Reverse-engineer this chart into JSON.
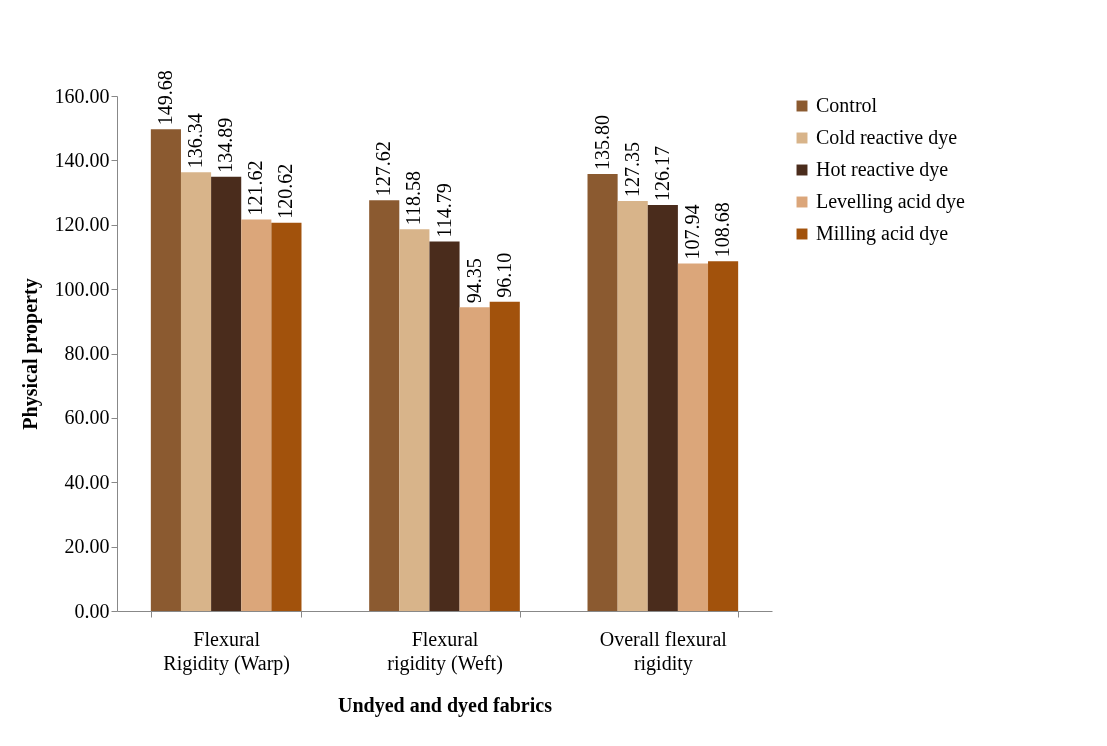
{
  "chart_data": {
    "type": "bar",
    "xlabel": "Undyed and dyed fabrics",
    "ylabel": "Physical property",
    "categories": [
      "Flexural Rigidity (Warp)",
      "Flexural rigidity (Weft)",
      "Overall flexural rigidity"
    ],
    "series": [
      {
        "name": "Control",
        "color": "#8b5a30",
        "values": [
          149.68,
          127.62,
          135.8
        ]
      },
      {
        "name": "Cold reactive dye",
        "color": "#d8b48a",
        "values": [
          136.34,
          118.58,
          127.35
        ]
      },
      {
        "name": "Hot reactive dye",
        "color": "#4a2c1c",
        "values": [
          134.89,
          114.79,
          126.17
        ]
      },
      {
        "name": "Levelling acid dye",
        "color": "#dba67a",
        "values": [
          121.62,
          94.35,
          107.94
        ]
      },
      {
        "name": "Milling acid dye",
        "color": "#a2520c",
        "values": [
          120.62,
          96.1,
          108.68
        ]
      }
    ],
    "value_labels": [
      [
        "149.68",
        "127.62",
        "135.80"
      ],
      [
        "136.34",
        "118.58",
        "127.35"
      ],
      [
        "134.89",
        "114.79",
        "126.17"
      ],
      [
        "121.62",
        "94.35",
        "107.94"
      ],
      [
        "120.62",
        "96.10",
        "108.68"
      ]
    ],
    "ylim": [
      0,
      160
    ],
    "yticks": [
      {
        "value": 0,
        "label": "0.00"
      },
      {
        "value": 20,
        "label": "20.00"
      },
      {
        "value": 40,
        "label": "40.00"
      },
      {
        "value": 60,
        "label": "60.00"
      },
      {
        "value": 80,
        "label": "80.00"
      },
      {
        "value": 100,
        "label": "100.00"
      },
      {
        "value": 120,
        "label": "120.00"
      },
      {
        "value": 140,
        "label": "140.00"
      },
      {
        "value": 160,
        "label": "160.00"
      }
    ],
    "grid": false,
    "legend": "right"
  }
}
